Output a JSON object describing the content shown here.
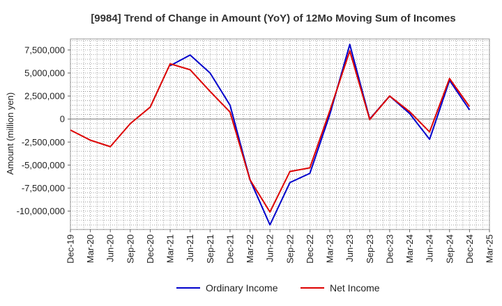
{
  "chart_data": {
    "type": "line",
    "title": "[9984]  Trend of Change in Amount (YoY) of 12Mo Moving Sum of Incomes",
    "xlabel": "",
    "ylabel": "Amount (million yen)",
    "categories": [
      "Dec-19",
      "Mar-20",
      "Jun-20",
      "Sep-20",
      "Dec-20",
      "Mar-21",
      "Jun-21",
      "Sep-21",
      "Dec-21",
      "Mar-22",
      "Jun-22",
      "Sep-22",
      "Dec-22",
      "Mar-23",
      "Jun-23",
      "Sep-23",
      "Dec-23",
      "Mar-24",
      "Jun-24",
      "Sep-24",
      "Dec-24",
      "Mar-25"
    ],
    "ylim": [
      -12000000,
      8700000
    ],
    "yticks": [
      7500000,
      5000000,
      2500000,
      0,
      -2500000,
      -5000000,
      -7500000,
      -10000000
    ],
    "ytick_labels": [
      "7,500,000",
      "5,000,000",
      "2,500,000",
      "0",
      "-2,500,000",
      "-5,000,000",
      "-7,500,000",
      "-10,000,000"
    ],
    "grid": true,
    "legend_position": "bottom-center",
    "series": [
      {
        "name": "Ordinary Income",
        "color": "#0000cc",
        "values": [
          null,
          null,
          null,
          null,
          null,
          5800000,
          6950000,
          5000000,
          1500000,
          -6600000,
          -11500000,
          -6900000,
          -5900000,
          500000,
          8100000,
          0,
          2500000,
          600000,
          -2200000,
          4200000,
          1000000,
          null
        ]
      },
      {
        "name": "Net Income",
        "color": "#dd0000",
        "values": [
          -1200000,
          -2300000,
          -3000000,
          -500000,
          1300000,
          6000000,
          5350000,
          3000000,
          750000,
          -6600000,
          -10100000,
          -5700000,
          -5300000,
          900000,
          7400000,
          -50000,
          2500000,
          800000,
          -1400000,
          4400000,
          1350000,
          null
        ]
      }
    ]
  }
}
